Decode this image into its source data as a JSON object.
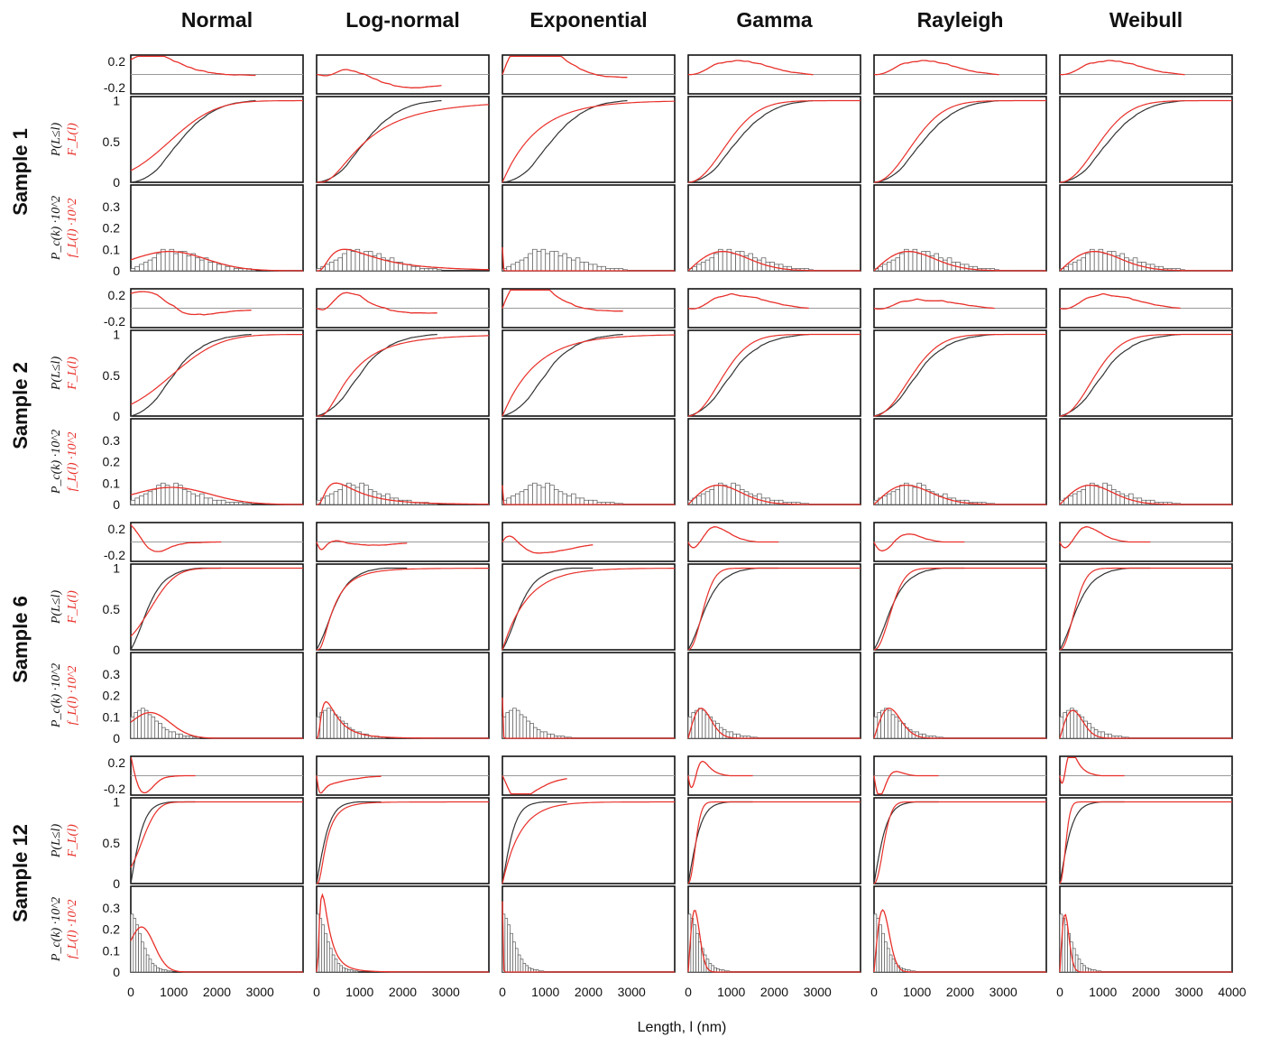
{
  "figure": {
    "columns": [
      "Normal",
      "Log-normal",
      "Exponential",
      "Gamma",
      "Rayleigh",
      "Weibull"
    ],
    "rows": [
      "Sample 1",
      "Sample 2",
      "Sample 6",
      "Sample 12"
    ],
    "x_axis_label": "Length, l (nm)",
    "y_labels": {
      "residual_ticks": [
        "0.2",
        "-0.2"
      ],
      "cdf_ticks": [
        "1",
        "0.5",
        "0"
      ],
      "pdf_ticks": [
        "0.3",
        "0.2",
        "0.1",
        "0"
      ],
      "cdf_empirical": "P(L≤l)",
      "cdf_model": "F_L(l)",
      "pdf_empirical": "P_c(k) ·10^2",
      "pdf_model": "f_L(l) ·10^2"
    },
    "x_ticks": [
      "0",
      "1000",
      "2000",
      "3000",
      "4000"
    ],
    "colors": {
      "empirical": "#333333",
      "model": "#e8302a",
      "bars_fill": "#ffffff",
      "zero_line": "#999999"
    }
  },
  "chart_data": {
    "type": "line",
    "description_grid": "rows = samples, each with residual, CDF and histogram panels; columns = fitted distributions",
    "xlim": [
      0,
      4000
    ],
    "panels": {
      "residual": {
        "ylim": [
          -0.3,
          0.3
        ],
        "yticks": [
          0.2,
          -0.2
        ]
      },
      "cdf": {
        "ylim": [
          0,
          1.05
        ],
        "yticks": [
          1,
          0.5,
          0
        ]
      },
      "pdf": {
        "ylim": [
          0,
          0.4
        ],
        "yticks": [
          0.3,
          0.2,
          0.1,
          0
        ]
      }
    },
    "samples": [
      {
        "name": "Sample 1",
        "data_max": 2900,
        "histogram": {
          "bin_width": 100,
          "values": [
            0.01,
            0.02,
            0.03,
            0.04,
            0.05,
            0.06,
            0.08,
            0.1,
            0.09,
            0.1,
            0.08,
            0.09,
            0.09,
            0.07,
            0.08,
            0.06,
            0.05,
            0.06,
            0.04,
            0.04,
            0.03,
            0.03,
            0.02,
            0.02,
            0.01,
            0.01,
            0.01,
            0.01,
            0.005
          ]
        },
        "model_pdf_peak": {
          "Normal": [
            0.09,
            900
          ],
          "Log-normal": [
            0.1,
            650
          ],
          "Exponential": [
            0.11,
            0
          ],
          "Gamma": [
            0.09,
            800
          ],
          "Rayleigh": [
            0.09,
            800
          ],
          "Weibull": [
            0.09,
            800
          ]
        }
      },
      {
        "name": "Sample 2",
        "data_max": 2800,
        "histogram": {
          "bin_width": 100,
          "values": [
            0.02,
            0.03,
            0.04,
            0.05,
            0.06,
            0.07,
            0.09,
            0.1,
            0.09,
            0.08,
            0.1,
            0.09,
            0.07,
            0.06,
            0.05,
            0.04,
            0.05,
            0.03,
            0.03,
            0.02,
            0.02,
            0.02,
            0.01,
            0.01,
            0.01,
            0.01,
            0.005,
            0.005
          ]
        },
        "model_pdf_peak": {
          "Normal": [
            0.08,
            950
          ],
          "Log-normal": [
            0.1,
            450
          ],
          "Exponential": [
            0.09,
            0
          ],
          "Gamma": [
            0.09,
            700
          ],
          "Rayleigh": [
            0.09,
            750
          ],
          "Weibull": [
            0.09,
            700
          ]
        }
      },
      {
        "name": "Sample 6",
        "data_max": 2100,
        "histogram": {
          "bin_width": 80,
          "values": [
            0.1,
            0.12,
            0.13,
            0.14,
            0.13,
            0.11,
            0.1,
            0.08,
            0.07,
            0.05,
            0.04,
            0.03,
            0.03,
            0.02,
            0.02,
            0.01,
            0.01,
            0.01,
            0.005,
            0.005
          ]
        },
        "model_pdf_peak": {
          "Normal": [
            0.12,
            450
          ],
          "Log-normal": [
            0.17,
            220
          ],
          "Exponential": [
            0.19,
            0
          ],
          "Gamma": [
            0.14,
            300
          ],
          "Rayleigh": [
            0.14,
            350
          ],
          "Weibull": [
            0.13,
            300
          ]
        }
      },
      {
        "name": "Sample 12",
        "data_max": 1500,
        "histogram": {
          "bin_width": 60,
          "values": [
            0.27,
            0.25,
            0.22,
            0.18,
            0.14,
            0.11,
            0.08,
            0.06,
            0.04,
            0.03,
            0.02,
            0.015,
            0.01,
            0.01,
            0.005,
            0.005
          ]
        },
        "model_pdf_peak": {
          "Normal": [
            0.21,
            250
          ],
          "Log-normal": [
            0.36,
            130
          ],
          "Exponential": [
            0.33,
            0
          ],
          "Gamma": [
            0.29,
            150
          ],
          "Rayleigh": [
            0.29,
            200
          ],
          "Weibull": [
            0.27,
            120
          ]
        }
      }
    ]
  }
}
